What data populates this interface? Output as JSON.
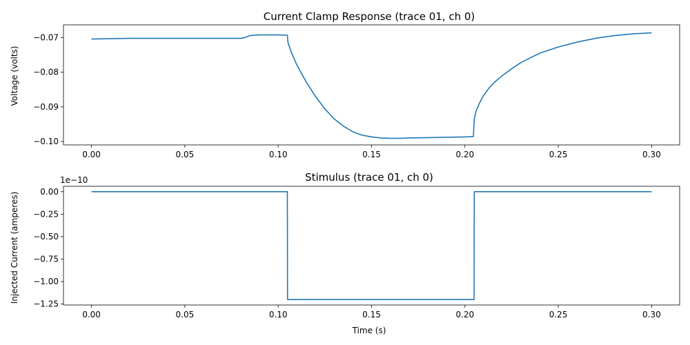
{
  "chart_data": [
    {
      "type": "line",
      "title": "Current Clamp Response (trace 01, ch 0)",
      "xlabel": "",
      "ylabel": "Voltage (volts)",
      "xlim": [
        -0.015,
        0.315
      ],
      "ylim": [
        -0.101,
        -0.0663
      ],
      "xticks": [
        0.0,
        0.05,
        0.1,
        0.15,
        0.2,
        0.25,
        0.3
      ],
      "xtick_labels": [
        "0.00",
        "0.05",
        "0.10",
        "0.15",
        "0.20",
        "0.25",
        "0.30"
      ],
      "yticks": [
        -0.07,
        -0.08,
        -0.09,
        -0.1
      ],
      "ytick_labels": [
        "−0.07",
        "−0.08",
        "−0.09",
        "−0.10"
      ],
      "series": [
        {
          "color": "#1f77b4",
          "x": [
            0.0,
            0.01,
            0.02,
            0.04,
            0.06,
            0.08,
            0.082,
            0.085,
            0.09,
            0.1,
            0.1049,
            0.1052,
            0.107,
            0.11,
            0.115,
            0.12,
            0.125,
            0.13,
            0.135,
            0.14,
            0.145,
            0.15,
            0.155,
            0.16,
            0.165,
            0.17,
            0.18,
            0.19,
            0.2,
            0.2045,
            0.2046,
            0.2048,
            0.205,
            0.206,
            0.208,
            0.21,
            0.213,
            0.216,
            0.22,
            0.225,
            0.23,
            0.24,
            0.25,
            0.26,
            0.27,
            0.28,
            0.29,
            0.3
          ],
          "y": [
            -0.0704,
            -0.0703,
            -0.0702,
            -0.0702,
            -0.0702,
            -0.0702,
            -0.07,
            -0.0694,
            -0.0692,
            -0.0692,
            -0.0693,
            -0.0713,
            -0.0742,
            -0.0779,
            -0.0828,
            -0.087,
            -0.0906,
            -0.0935,
            -0.0956,
            -0.0972,
            -0.0982,
            -0.0987,
            -0.099,
            -0.0991,
            -0.0991,
            -0.099,
            -0.0989,
            -0.0988,
            -0.0987,
            -0.0986,
            -0.098,
            -0.0955,
            -0.0935,
            -0.0912,
            -0.0887,
            -0.0867,
            -0.0845,
            -0.0828,
            -0.081,
            -0.079,
            -0.0772,
            -0.0745,
            -0.0727,
            -0.0713,
            -0.0702,
            -0.0694,
            -0.0689,
            -0.0686
          ]
        }
      ]
    },
    {
      "type": "line",
      "title": "Stimulus (trace 01, ch 0)",
      "xlabel": "Time (s)",
      "ylabel": "Injected Current (amperes)",
      "y_offset_label": "1e−10",
      "xlim": [
        -0.015,
        0.315
      ],
      "ylim": [
        -1.26,
        0.06
      ],
      "y_scale": "1e-10",
      "xticks": [
        0.0,
        0.05,
        0.1,
        0.15,
        0.2,
        0.25,
        0.3
      ],
      "xtick_labels": [
        "0.00",
        "0.05",
        "0.10",
        "0.15",
        "0.20",
        "0.25",
        "0.30"
      ],
      "yticks": [
        0.0,
        -0.25,
        -0.5,
        -0.75,
        -1.0,
        -1.25
      ],
      "ytick_labels": [
        "0.00",
        "−0.25",
        "−0.50",
        "−0.75",
        "−1.00",
        "−1.25"
      ],
      "series": [
        {
          "color": "#1f77b4",
          "x": [
            0.0,
            0.1049,
            0.105,
            0.2049,
            0.205,
            0.3
          ],
          "y": [
            0.0,
            0.0,
            -1.2,
            -1.2,
            0.0,
            0.0
          ]
        }
      ]
    }
  ]
}
